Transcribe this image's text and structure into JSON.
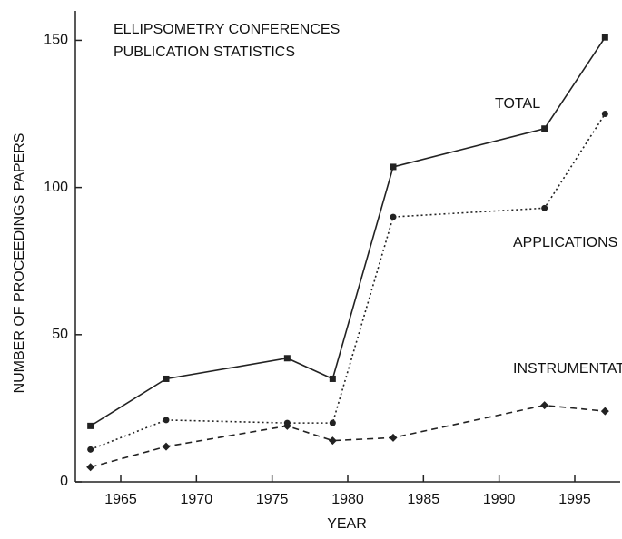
{
  "chart_data": {
    "type": "line",
    "title": "ELLIPSOMETRY CONFERENCES",
    "subtitle": "PUBLICATION STATISTICS",
    "x_label": "YEAR",
    "y_label": "NUMBER OF PROCEEDINGS PAPERS",
    "x": [
      1963,
      1968,
      1976,
      1979,
      1983,
      1993,
      1997
    ],
    "series": [
      {
        "name": "TOTAL",
        "color": "#222222",
        "style": "solid",
        "marker": "square",
        "values": [
          19,
          35,
          42,
          35,
          107,
          120,
          151
        ]
      },
      {
        "name": "APPLICATIONS",
        "color": "#222222",
        "style": "dotted",
        "marker": "circle",
        "values": [
          11,
          21,
          20,
          20,
          90,
          93,
          125
        ]
      },
      {
        "name": "INSTRUMENTATION",
        "color": "#222222",
        "style": "dashed",
        "marker": "diamond",
        "values": [
          5,
          12,
          19,
          14,
          15,
          26,
          24
        ]
      }
    ],
    "xlim": [
      1962,
      1998
    ],
    "xticks": [
      1965,
      1970,
      1975,
      1980,
      1985,
      1990,
      1995
    ],
    "ylim": [
      0,
      160
    ],
    "yticks": [
      0,
      50,
      100,
      150
    ],
    "grid": false
  }
}
